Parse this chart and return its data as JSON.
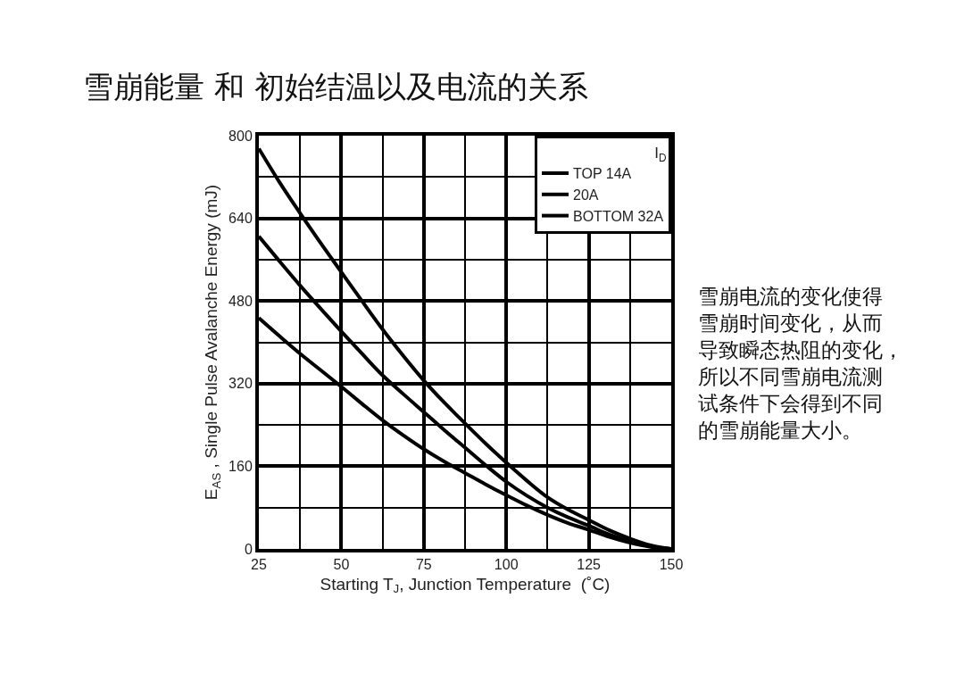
{
  "chart_data": {
    "type": "line",
    "title": "雪崩能量 和 初始结温以及电流的关系",
    "xlabel": "Starting T$_{J}$, Junction Temperature  (˚C)",
    "ylabel": "E$_{AS}$ , Single Pulse Avalanche Energy (mJ)",
    "legend_title": "I$_{D}$",
    "x": [
      25,
      31.25,
      37.5,
      43.75,
      50,
      56.25,
      62.5,
      68.75,
      75,
      81.25,
      87.5,
      93.75,
      100,
      106.25,
      112.5,
      118.75,
      125,
      131.25,
      137.5,
      143.75,
      150
    ],
    "series": [
      {
        "name": "TOP 14A",
        "color": "#000000",
        "values": [
          775,
          710,
          650,
          592,
          536,
          480,
          425,
          374,
          326,
          283,
          243,
          204,
          167,
          132,
          100,
          76,
          56,
          36,
          20,
          7,
          0
        ]
      },
      {
        "name": "20A",
        "color": "#000000",
        "values": [
          605,
          557,
          510,
          465,
          421,
          378,
          336,
          300,
          265,
          230,
          196,
          162,
          130,
          103,
          80,
          61,
          45,
          28,
          15,
          5,
          0
        ]
      },
      {
        "name": "BOTTOM 32A",
        "color": "#000000",
        "values": [
          447,
          412,
          378,
          346,
          314,
          281,
          249,
          220,
          193,
          169,
          147,
          125,
          104,
          84,
          66,
          50,
          37,
          23,
          12,
          4,
          0
        ]
      }
    ],
    "xlim": [
      25,
      150
    ],
    "xticks": [
      25,
      {
        "value": 37.5,
        "label": null
      },
      50,
      {
        "value": 62.5,
        "label": null
      },
      75,
      {
        "value": 87.5,
        "label": null
      },
      100,
      {
        "value": 112.5,
        "label": null
      },
      125,
      {
        "value": 137.5,
        "label": null
      },
      150
    ],
    "ylim": [
      0,
      800
    ],
    "yticks": [
      0,
      {
        "value": 80,
        "label": null
      },
      160,
      {
        "value": 240,
        "label": null
      },
      320,
      {
        "value": 400,
        "label": null
      },
      480,
      {
        "value": 560,
        "label": null
      },
      640,
      {
        "value": 720,
        "label": null
      },
      800
    ],
    "annotations": [
      "雪崩电流的变化使得雪崩时间变化，从而导致瞬态热阻的变化，所以不同雪崩电流测试条件下会得到不同的雪崩能量大小。"
    ],
    "grid": true,
    "legend": "top right",
    "marker": "none",
    "line_style": "solid"
  }
}
